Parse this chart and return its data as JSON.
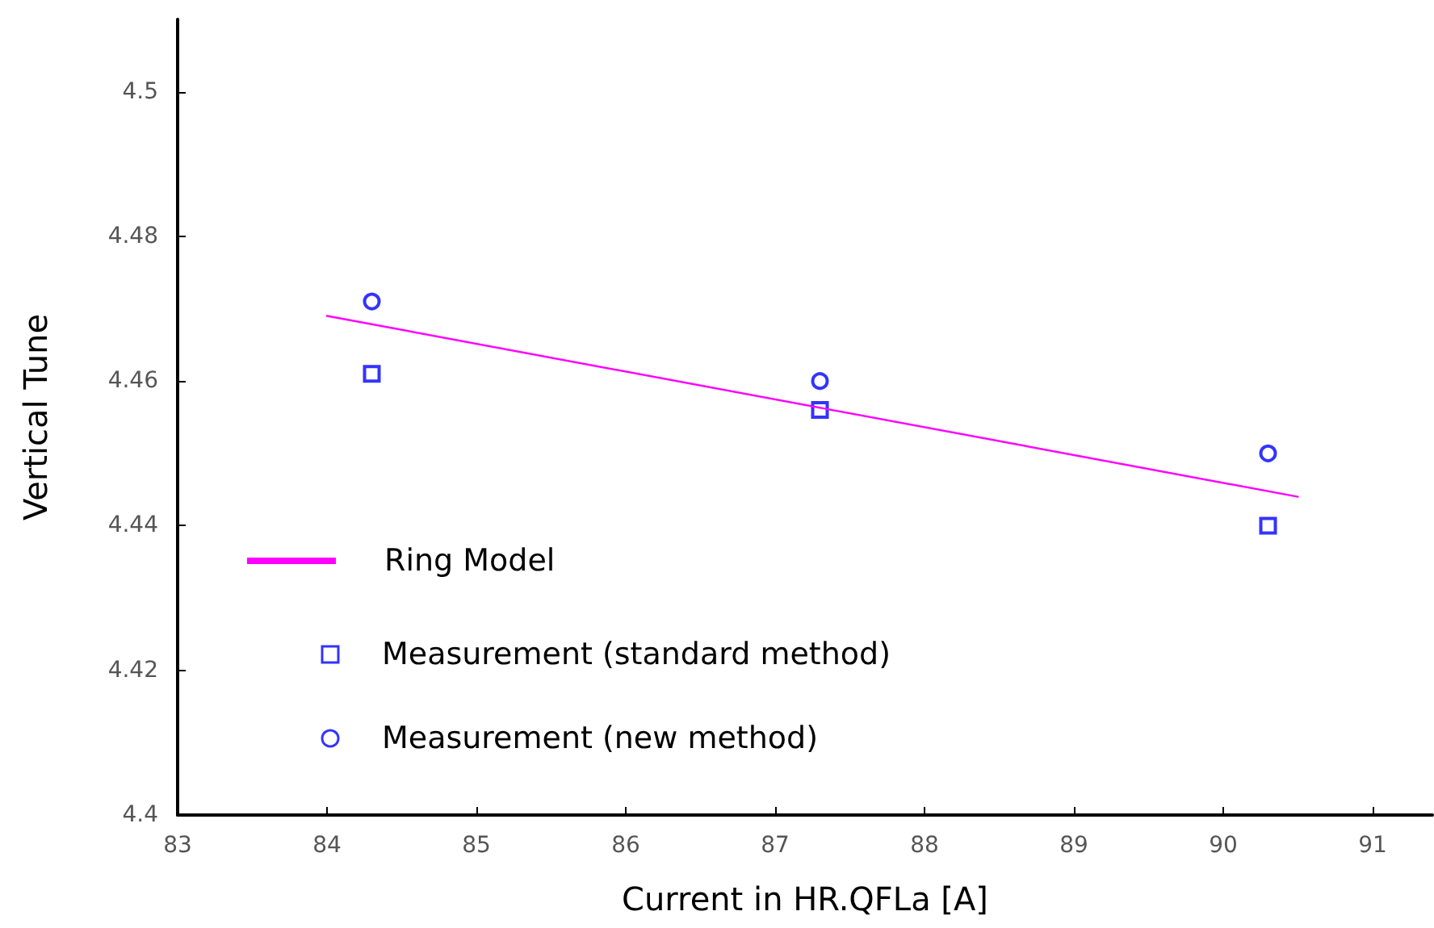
{
  "chart_data": {
    "type": "scatter",
    "xlabel": "Current in HR.QFLa [A]",
    "ylabel": "Vertical Tune",
    "series": [
      {
        "name": "Ring Model",
        "type": "line",
        "color": "#ff00ff",
        "x": [
          84,
          90.5
        ],
        "values": [
          4.469,
          4.444
        ],
        "marker": "none",
        "line_style": "solid"
      },
      {
        "name": "Measurement (standard method)",
        "color": "#0000ff",
        "x": [
          84.3,
          87.3,
          90.3
        ],
        "values": [
          4.461,
          4.456,
          4.44
        ],
        "marker": "square"
      },
      {
        "name": "Measurement (new method)",
        "color": "#0000ff",
        "x": [
          84.3,
          87.3,
          90.3
        ],
        "values": [
          4.471,
          4.46,
          4.45
        ],
        "marker": "circle"
      }
    ],
    "xlim": [
      83,
      91.4
    ],
    "xticks": [
      83,
      84,
      85,
      86,
      87,
      88,
      89,
      90,
      91
    ],
    "ylim": [
      4.4,
      4.51
    ],
    "yticks": [
      4.4,
      4.42,
      4.44,
      4.46,
      4.48,
      4.5
    ],
    "grid": false,
    "legend": "bottom left"
  }
}
